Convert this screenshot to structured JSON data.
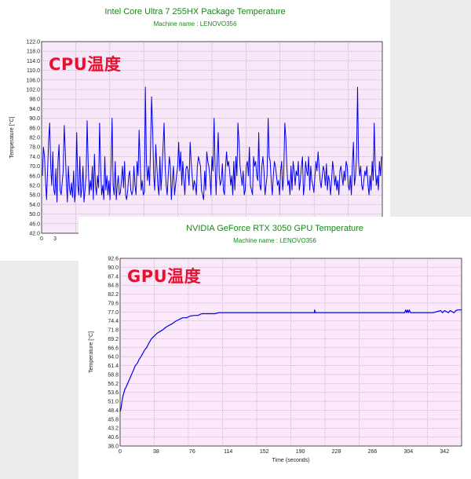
{
  "chart_data": [
    {
      "type": "line",
      "title": "Intel Core Ultra 7 255HX Package Temperature",
      "subtitle": "Machine name : LENOVO356",
      "overlay_label": "CPU温度",
      "ylabel": "Temperature [°C]",
      "xlabel": "",
      "ylim": [
        42,
        122
      ],
      "xlim": [
        0,
        76
      ],
      "y_ticks": [
        "122.0",
        "118.0",
        "114.0",
        "110.0",
        "106.0",
        "102.0",
        "98.0",
        "94.0",
        "90.0",
        "86.0",
        "82.0",
        "78.0",
        "74.0",
        "70.0",
        "66.0",
        "62.0",
        "58.0",
        "54.0",
        "50.0",
        "46.0",
        "42.0"
      ],
      "x_ticks": [
        "0",
        "3"
      ],
      "grid": true,
      "series_color": "#0000ee",
      "plot_bg": "#f8e7f8",
      "grid_color": "#b080b0",
      "series": [
        {
          "values": [
            66,
            78,
            74,
            64,
            56,
            68,
            81,
            88,
            70,
            62,
            76,
            60,
            58,
            69,
            55,
            72,
            79,
            60,
            58,
            63,
            68,
            87,
            76,
            64,
            55,
            70,
            61,
            58,
            63,
            57,
            68,
            55,
            60,
            84,
            62,
            58,
            74,
            57,
            61,
            70,
            55,
            60,
            66,
            89,
            72,
            58,
            64,
            60,
            70,
            56,
            75,
            62,
            58,
            66,
            61,
            88,
            70,
            58,
            62,
            56,
            74,
            60,
            66,
            58,
            64,
            56,
            71,
            90,
            62,
            58,
            72,
            56,
            62,
            66,
            58,
            59,
            64,
            70,
            61,
            72,
            58,
            56,
            60,
            66,
            68,
            60,
            58,
            60,
            70,
            62,
            58,
            72,
            66,
            85,
            71,
            60,
            64,
            58,
            59,
            103,
            72,
            64,
            70,
            62,
            78,
            99,
            85,
            66,
            60,
            79,
            70,
            62,
            58,
            74,
            60,
            68,
            78,
            88,
            70,
            62,
            58,
            66,
            74,
            70,
            56,
            64,
            70,
            58,
            62,
            66,
            70,
            80,
            68,
            76,
            62,
            72,
            64,
            58,
            69,
            70,
            68,
            62,
            80,
            72,
            66,
            60,
            64,
            62,
            58,
            70,
            74,
            72,
            70,
            60,
            58,
            56,
            68,
            60,
            76,
            72,
            70,
            66,
            58,
            74,
            68,
            90,
            70,
            58,
            72,
            84,
            66,
            62,
            64,
            71,
            60,
            58,
            69,
            76,
            70,
            72,
            68,
            62,
            66,
            58,
            72,
            60,
            74,
            66,
            88,
            80,
            70,
            66,
            62,
            68,
            58,
            60,
            70,
            72,
            66,
            78,
            62,
            60,
            58,
            74,
            70,
            72,
            66,
            64,
            84,
            62,
            60,
            70,
            74,
            68,
            58,
            62,
            66,
            90,
            74,
            72,
            64,
            58,
            66,
            72,
            70,
            66,
            62,
            64,
            58,
            68,
            72,
            60,
            66,
            88,
            82,
            70,
            62,
            64,
            58,
            70,
            60,
            72,
            68,
            62,
            68,
            66,
            72,
            60,
            64,
            70,
            74,
            58,
            62,
            72,
            68,
            66,
            74,
            60,
            70,
            64,
            62,
            59,
            66,
            72,
            68,
            76,
            70,
            64,
            61,
            66,
            70,
            68,
            62,
            71,
            60,
            66,
            64,
            58,
            64,
            72,
            68,
            62,
            66,
            60,
            64,
            58,
            68,
            70,
            66,
            62,
            68,
            64,
            72,
            70,
            62,
            60,
            66,
            58,
            71,
            80,
            62,
            66,
            74,
            103,
            72,
            66,
            70,
            62,
            60,
            64,
            68,
            66,
            70,
            62,
            58,
            66,
            60,
            72,
            64,
            88,
            70,
            62,
            66,
            60,
            72,
            66,
            74
          ]
        }
      ]
    },
    {
      "type": "line",
      "title": "NVIDIA GeForce RTX 3050 GPU Temperature",
      "subtitle": "Machine name : LENOVO356",
      "overlay_label": "GPU温度",
      "ylabel": "Temperature [°C]",
      "xlabel": "Time (seconds)",
      "ylim": [
        38.0,
        92.6
      ],
      "xlim": [
        0,
        360
      ],
      "y_ticks": [
        "92.6",
        "90.0",
        "87.4",
        "84.8",
        "82.2",
        "79.6",
        "77.0",
        "74.4",
        "71.8",
        "69.2",
        "66.6",
        "64.0",
        "61.4",
        "58.8",
        "56.2",
        "53.6",
        "51.0",
        "48.4",
        "45.8",
        "43.2",
        "40.6",
        "38.0"
      ],
      "x_ticks": [
        "0",
        "38",
        "76",
        "114",
        "152",
        "190",
        "228",
        "266",
        "304",
        "342"
      ],
      "grid": true,
      "series_color": "#0000ee",
      "plot_bg": "#fbe8fb",
      "grid_color": "#b080b0",
      "series": [
        {
          "x": [
            0,
            1,
            2,
            3,
            4,
            5,
            6,
            8,
            10,
            12,
            14,
            16,
            18,
            20,
            22,
            24,
            26,
            28,
            30,
            33,
            36,
            39,
            42,
            45,
            48,
            51,
            55,
            58,
            62,
            66,
            70,
            74,
            78,
            82,
            86,
            90,
            95,
            100,
            104,
            108,
            112,
            150,
            190,
            200,
            205,
            205,
            206,
            207,
            210,
            250,
            300,
            301,
            302,
            303,
            304,
            305,
            306,
            307,
            330,
            338,
            340,
            342,
            346,
            348,
            352,
            354,
            356,
            360
          ],
          "values": [
            48,
            49,
            51,
            52.5,
            53.5,
            54.5,
            55,
            56.2,
            57.5,
            58.8,
            60,
            61.4,
            62,
            63.2,
            64,
            65,
            66,
            66.6,
            67.8,
            69.2,
            70,
            70.8,
            71.3,
            71.8,
            72.5,
            73,
            73.6,
            74.2,
            74.8,
            75.3,
            75.3,
            75.8,
            76,
            76,
            76.5,
            76.5,
            76.5,
            76.5,
            76.8,
            76.8,
            76.8,
            76.8,
            76.8,
            76.8,
            76.8,
            77.6,
            76.8,
            76.8,
            76.8,
            76.8,
            76.8,
            77.6,
            76.8,
            77.6,
            76.8,
            77.6,
            76.8,
            76.8,
            76.8,
            77.4,
            76.8,
            77.4,
            76.8,
            77.4,
            76.8,
            77.4,
            77.6,
            77.6
          ]
        }
      ]
    }
  ]
}
